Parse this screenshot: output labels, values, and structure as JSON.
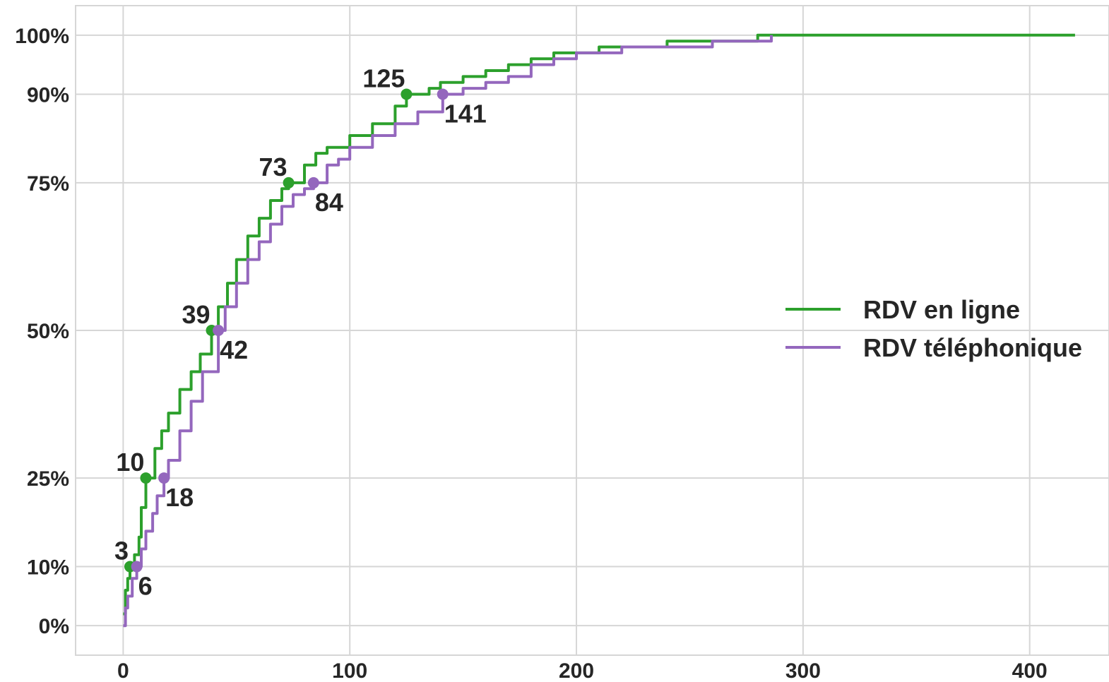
{
  "chart_data": {
    "type": "line",
    "title": "",
    "xlabel": "",
    "ylabel": "",
    "xlim": [
      -21,
      435
    ],
    "ylim": [
      -0.05,
      1.05
    ],
    "x_ticks": [
      0,
      100,
      200,
      300,
      400
    ],
    "x_tick_labels": [
      "0",
      "100",
      "200",
      "300",
      "400"
    ],
    "y_ticks": [
      0,
      0.1,
      0.25,
      0.5,
      0.75,
      0.9,
      1.0
    ],
    "y_tick_labels": [
      "0%",
      "10%",
      "25%",
      "50%",
      "75%",
      "90%",
      "100%"
    ],
    "grid": true,
    "legend_position": "right",
    "series": [
      {
        "name": "RDV en ligne",
        "color": "#2ca02c",
        "x": [
          0,
          1,
          2,
          3,
          5,
          7,
          8,
          10,
          14,
          17,
          20,
          25,
          30,
          34,
          39,
          42,
          46,
          50,
          55,
          60,
          65,
          70,
          73,
          80,
          85,
          90,
          96,
          100,
          110,
          120,
          125,
          135,
          140,
          150,
          160,
          170,
          180,
          190,
          200,
          210,
          220,
          240,
          260,
          280,
          290,
          300,
          350,
          420
        ],
        "y": [
          0.02,
          0.06,
          0.08,
          0.1,
          0.12,
          0.15,
          0.2,
          0.25,
          0.3,
          0.33,
          0.36,
          0.4,
          0.43,
          0.46,
          0.5,
          0.54,
          0.58,
          0.62,
          0.66,
          0.69,
          0.72,
          0.74,
          0.75,
          0.78,
          0.8,
          0.81,
          0.81,
          0.83,
          0.85,
          0.88,
          0.9,
          0.91,
          0.92,
          0.93,
          0.94,
          0.95,
          0.96,
          0.97,
          0.97,
          0.98,
          0.98,
          0.99,
          0.99,
          1.0,
          1.0,
          1.0,
          1.0,
          1.0
        ]
      },
      {
        "name": "RDV téléphonique",
        "color": "#9467bd",
        "x": [
          0,
          1,
          2,
          4,
          6,
          8,
          10,
          13,
          15,
          18,
          20,
          25,
          30,
          35,
          42,
          45,
          50,
          55,
          60,
          65,
          70,
          75,
          80,
          84,
          90,
          95,
          100,
          110,
          120,
          130,
          141,
          150,
          160,
          170,
          180,
          190,
          200,
          220,
          240,
          260,
          280,
          286
        ],
        "y": [
          0.0,
          0.03,
          0.05,
          0.08,
          0.1,
          0.13,
          0.16,
          0.19,
          0.22,
          0.25,
          0.28,
          0.33,
          0.38,
          0.43,
          0.5,
          0.54,
          0.58,
          0.62,
          0.65,
          0.68,
          0.71,
          0.73,
          0.74,
          0.75,
          0.78,
          0.79,
          0.81,
          0.83,
          0.85,
          0.87,
          0.9,
          0.91,
          0.92,
          0.93,
          0.95,
          0.96,
          0.97,
          0.98,
          0.98,
          0.99,
          0.99,
          1.0
        ]
      }
    ],
    "annotations": [
      {
        "series": 0,
        "x": 3,
        "y": 0.1,
        "text": "3",
        "side": "above-left"
      },
      {
        "series": 0,
        "x": 10,
        "y": 0.25,
        "text": "10",
        "side": "above-left"
      },
      {
        "series": 0,
        "x": 39,
        "y": 0.5,
        "text": "39",
        "side": "above-left"
      },
      {
        "series": 0,
        "x": 73,
        "y": 0.75,
        "text": "73",
        "side": "above-left"
      },
      {
        "series": 0,
        "x": 125,
        "y": 0.9,
        "text": "125",
        "side": "above-left"
      },
      {
        "series": 1,
        "x": 6,
        "y": 0.1,
        "text": "6",
        "side": "below-right"
      },
      {
        "series": 1,
        "x": 18,
        "y": 0.25,
        "text": "18",
        "side": "below-right"
      },
      {
        "series": 1,
        "x": 42,
        "y": 0.5,
        "text": "42",
        "side": "below-right"
      },
      {
        "series": 1,
        "x": 84,
        "y": 0.75,
        "text": "84",
        "side": "below-right"
      },
      {
        "series": 1,
        "x": 141,
        "y": 0.9,
        "text": "141",
        "side": "below-right"
      }
    ]
  }
}
